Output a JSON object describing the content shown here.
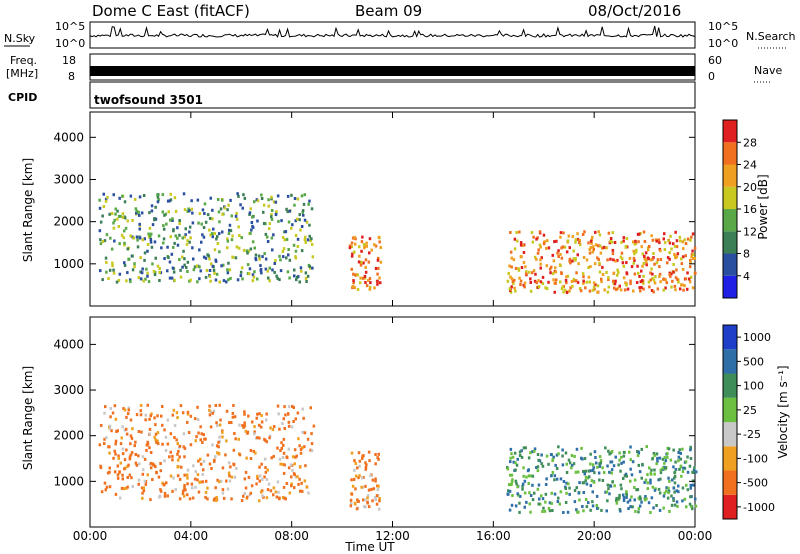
{
  "header": {
    "station": "Dome C East (fitACF)",
    "beam": "Beam 09",
    "date": "08/Oct/2016"
  },
  "nsky_panel": {
    "left_label": "N.Sky",
    "left_ticks": [
      "10^5",
      "10^0"
    ],
    "right_ticks": [
      "10^5",
      "10^0"
    ],
    "right_label": "N.Search"
  },
  "freq_panel": {
    "left_label_1": "Freq.",
    "left_label_2": "[MHz]",
    "left_ticks": [
      "18",
      "8"
    ],
    "right_ticks": [
      "60",
      "0"
    ],
    "right_label": "Nave"
  },
  "cpid_panel": {
    "label": "CPID",
    "program": "twofsound 3501"
  },
  "chart_data": [
    {
      "type": "heatmap",
      "title": "",
      "ylabel": "Slant Range [km]",
      "xlabel": "",
      "xlim": [
        "00:00",
        "24:00"
      ],
      "ylim": [
        0,
        4600
      ],
      "yticks": [
        "1000",
        "2000",
        "3000",
        "4000"
      ],
      "colorbar_label": "Power [dB]",
      "colorbar_ticks": [
        "4",
        "8",
        "12",
        "16",
        "20",
        "24",
        "28"
      ],
      "colorbar_range": [
        0,
        32
      ],
      "colors": [
        "#1f1fe6",
        "#2a4fa0",
        "#3c7e55",
        "#58a848",
        "#c8c820",
        "#f0a020",
        "#f07020",
        "#e02020"
      ],
      "echo_regions": [
        {
          "t_start": "00:20",
          "t_end": "08:50",
          "r_min": 600,
          "r_max": 2700,
          "dominant": "8-20 dB"
        },
        {
          "t_start": "10:15",
          "t_end": "11:30",
          "r_min": 400,
          "r_max": 1700,
          "dominant": "24-32 dB"
        },
        {
          "t_start": "16:30",
          "t_end": "24:00",
          "r_min": 350,
          "r_max": 1800,
          "dominant": "16-32 dB"
        }
      ]
    },
    {
      "type": "heatmap",
      "title": "",
      "ylabel": "Slant Range [km]",
      "xlabel": "Time UT",
      "xlim": [
        "00:00",
        "24:00"
      ],
      "ylim": [
        0,
        4600
      ],
      "xticks": [
        "00:00",
        "04:00",
        "08:00",
        "12:00",
        "16:00",
        "20:00",
        "00:00"
      ],
      "yticks": [
        "1000",
        "2000",
        "3000",
        "4000"
      ],
      "colorbar_label": "Velocity [m s⁻¹]",
      "colorbar_ticks": [
        "1000",
        "500",
        "100",
        "25",
        "-25",
        "-100",
        "-500",
        "-1000"
      ],
      "colors": [
        "#1f3fc8",
        "#2f6fa8",
        "#3f8e5a",
        "#6cc040",
        "#c8c8c8",
        "#f0a020",
        "#f07020",
        "#e02020"
      ],
      "echo_regions": [
        {
          "t_start": "00:20",
          "t_end": "08:50",
          "r_min": 600,
          "r_max": 2700,
          "dominant": "-500 to -100 m/s"
        },
        {
          "t_start": "10:15",
          "t_end": "11:30",
          "r_min": 400,
          "r_max": 1700,
          "dominant": "-500 to -100 m/s"
        },
        {
          "t_start": "16:30",
          "t_end": "24:00",
          "r_min": 350,
          "r_max": 1800,
          "dominant": "100 to 500 m/s"
        }
      ]
    }
  ]
}
